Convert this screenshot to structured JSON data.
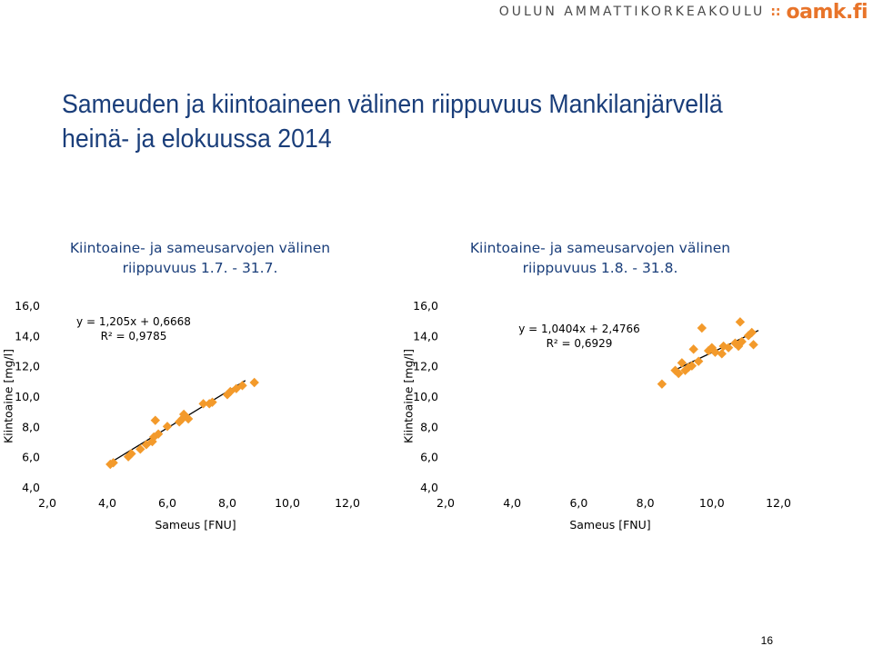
{
  "header": {
    "school_name": "OULUN AMMATTIKORKEAKOULU",
    "separator": "::",
    "logo_text": "oamk.fi",
    "brand_color": "#e8742a"
  },
  "title": {
    "line1": "Sameuden ja kiintoaineen välinen riippuvuus Mankilanjärvellä",
    "line2": "heinä- ja elokuussa 2014",
    "color": "#1a3e7a"
  },
  "page_number": "16",
  "chart_data": [
    {
      "type": "scatter",
      "title_lines": [
        "Kiintoaine- ja sameusarvojen välinen",
        "riippuvuus 1.7. - 31.7."
      ],
      "xlabel": "Sameus [FNU]",
      "ylabel": "Kiintoaine [mg/l]",
      "xlim": [
        2,
        12
      ],
      "ylim": [
        4,
        16
      ],
      "x_ticks": [
        "2,0",
        "4,0",
        "6,0",
        "8,0",
        "10,0",
        "12,0"
      ],
      "y_ticks": [
        "4,0",
        "6,0",
        "8,0",
        "10,0",
        "12,0",
        "14,0",
        "16,0"
      ],
      "grid": false,
      "marker_color": "#f39a2b",
      "trendline": {
        "slope": 1.205,
        "intercept": 0.6668,
        "x_range": [
          4.0,
          8.6
        ]
      },
      "annotation": {
        "equation": "y = 1,205x + 0,6668",
        "r2": "R² = 0,9785"
      },
      "points": [
        {
          "x": 4.1,
          "y": 5.5
        },
        {
          "x": 4.2,
          "y": 5.6
        },
        {
          "x": 4.7,
          "y": 6.0
        },
        {
          "x": 4.8,
          "y": 6.2
        },
        {
          "x": 5.1,
          "y": 6.5
        },
        {
          "x": 5.3,
          "y": 6.8
        },
        {
          "x": 5.5,
          "y": 7.0
        },
        {
          "x": 5.55,
          "y": 7.3
        },
        {
          "x": 5.6,
          "y": 8.4
        },
        {
          "x": 5.7,
          "y": 7.5
        },
        {
          "x": 6.0,
          "y": 8.0
        },
        {
          "x": 6.4,
          "y": 8.3
        },
        {
          "x": 6.5,
          "y": 8.5
        },
        {
          "x": 6.55,
          "y": 8.8
        },
        {
          "x": 6.7,
          "y": 8.5
        },
        {
          "x": 7.2,
          "y": 9.5
        },
        {
          "x": 7.4,
          "y": 9.5
        },
        {
          "x": 7.5,
          "y": 9.6
        },
        {
          "x": 8.0,
          "y": 10.1
        },
        {
          "x": 8.1,
          "y": 10.3
        },
        {
          "x": 8.3,
          "y": 10.5
        },
        {
          "x": 8.5,
          "y": 10.7
        },
        {
          "x": 8.9,
          "y": 10.9
        }
      ]
    },
    {
      "type": "scatter",
      "title_lines": [
        "Kiintoaine- ja sameusarvojen välinen",
        "riippuvuus 1.8. - 31.8."
      ],
      "xlabel": "Sameus [FNU]",
      "ylabel": "Kiintoaine [mg/l]",
      "xlim": [
        2,
        12
      ],
      "ylim": [
        4,
        16
      ],
      "x_ticks": [
        "2,0",
        "4,0",
        "6,0",
        "8,0",
        "10,0",
        "12,0"
      ],
      "y_ticks": [
        "4,0",
        "6,0",
        "8,0",
        "10,0",
        "12,0",
        "14,0",
        "16,0"
      ],
      "grid": false,
      "marker_color": "#f39a2b",
      "trendline": {
        "slope": 1.0404,
        "intercept": 2.4766,
        "x_range": [
          8.9,
          11.4
        ]
      },
      "annotation": {
        "equation": "y = 1,0404x + 2,4766",
        "r2": "R² = 0,6929"
      },
      "points": [
        {
          "x": 8.5,
          "y": 10.8
        },
        {
          "x": 8.9,
          "y": 11.7
        },
        {
          "x": 9.0,
          "y": 11.5
        },
        {
          "x": 9.1,
          "y": 12.2
        },
        {
          "x": 9.2,
          "y": 11.7
        },
        {
          "x": 9.3,
          "y": 11.9
        },
        {
          "x": 9.4,
          "y": 12.0
        },
        {
          "x": 9.45,
          "y": 13.1
        },
        {
          "x": 9.6,
          "y": 12.3
        },
        {
          "x": 9.7,
          "y": 14.5
        },
        {
          "x": 9.9,
          "y": 13.0
        },
        {
          "x": 10.0,
          "y": 13.2
        },
        {
          "x": 10.1,
          "y": 12.9
        },
        {
          "x": 10.3,
          "y": 12.8
        },
        {
          "x": 10.35,
          "y": 13.3
        },
        {
          "x": 10.5,
          "y": 13.2
        },
        {
          "x": 10.7,
          "y": 13.5
        },
        {
          "x": 10.8,
          "y": 13.3
        },
        {
          "x": 10.85,
          "y": 14.9
        },
        {
          "x": 10.9,
          "y": 13.6
        },
        {
          "x": 11.1,
          "y": 14.0
        },
        {
          "x": 11.2,
          "y": 14.2
        },
        {
          "x": 11.25,
          "y": 13.4
        }
      ]
    }
  ]
}
